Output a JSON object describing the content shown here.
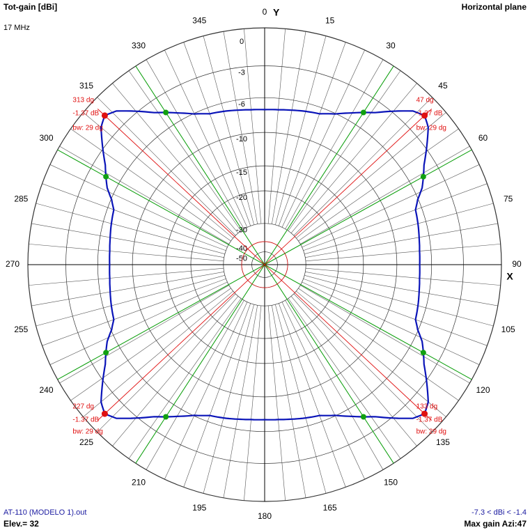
{
  "header": {
    "left_title": "Tot-gain [dBi]",
    "frequency": "17 MHz",
    "right_title": "Horizontal plane"
  },
  "footer": {
    "file_name": "AT-110 (MODELO 1).out",
    "elevation": "Elev.= 32",
    "range": "-7.3 < dBi < -1.4",
    "max_gain": "Max gain Azi:47"
  },
  "colors": {
    "pattern": "#0a14b8",
    "grid": "#000000",
    "red_marker": "#e01010",
    "green_marker": "#10a010"
  },
  "chart_data": {
    "type": "polar",
    "axis_x_label": "X",
    "axis_y_label": "Y",
    "angle_labels": [
      "0",
      "15",
      "30",
      "45",
      "60",
      "75",
      "90",
      "105",
      "120",
      "135",
      "150",
      "165",
      "180",
      "195",
      "210",
      "225",
      "240",
      "255",
      "270",
      "285",
      "300",
      "315",
      "330",
      "345"
    ],
    "radial_rings_db": [
      0,
      -3,
      -6,
      -10,
      -15,
      -20,
      -30,
      -40,
      -50
    ],
    "radial_labels": [
      "0",
      "-3",
      "-6",
      "-10",
      "-15",
      "-20",
      "-30",
      "-40",
      "-50"
    ],
    "max_gain_azimuths_deg": [
      47,
      133,
      227,
      313
    ],
    "max_gain_db": -1.37,
    "beamwidth_deg": 29,
    "half_power_azimuths_deg": [
      33,
      61,
      119,
      147,
      213,
      241,
      299,
      327
    ],
    "markers": [
      {
        "azimuth": "47 dg",
        "gain": "-1.37 dB",
        "bw": "bw: 29 dg"
      },
      {
        "azimuth": "133 dg",
        "gain": "-1.37 dB",
        "bw": "bw: 29 dg"
      },
      {
        "azimuth": "227 dg",
        "gain": "-1.37 dB",
        "bw": "bw: 29 dg"
      },
      {
        "azimuth": "313 dg",
        "gain": "-1.37 dB",
        "bw": "bw: 29 dg"
      }
    ],
    "pattern": {
      "azimuth_deg": [
        0,
        5,
        10,
        15,
        20,
        25,
        30,
        33,
        36,
        40,
        44,
        47,
        50,
        54,
        58,
        61,
        64,
        67,
        70,
        75,
        80,
        85,
        90
      ],
      "relative_gain_db": [
        -5.9,
        -5.85,
        -5.7,
        -5.5,
        -5.3,
        -4.7,
        -3.8,
        -3.2,
        -2.6,
        -1.5,
        -0.4,
        0,
        -0.4,
        -1.5,
        -2.6,
        -3.2,
        -3.8,
        -4.7,
        -5.3,
        -5.5,
        -5.7,
        -5.85,
        -5.9
      ],
      "symmetry": "fourfold (mirror about 0/90/180/270)"
    }
  }
}
